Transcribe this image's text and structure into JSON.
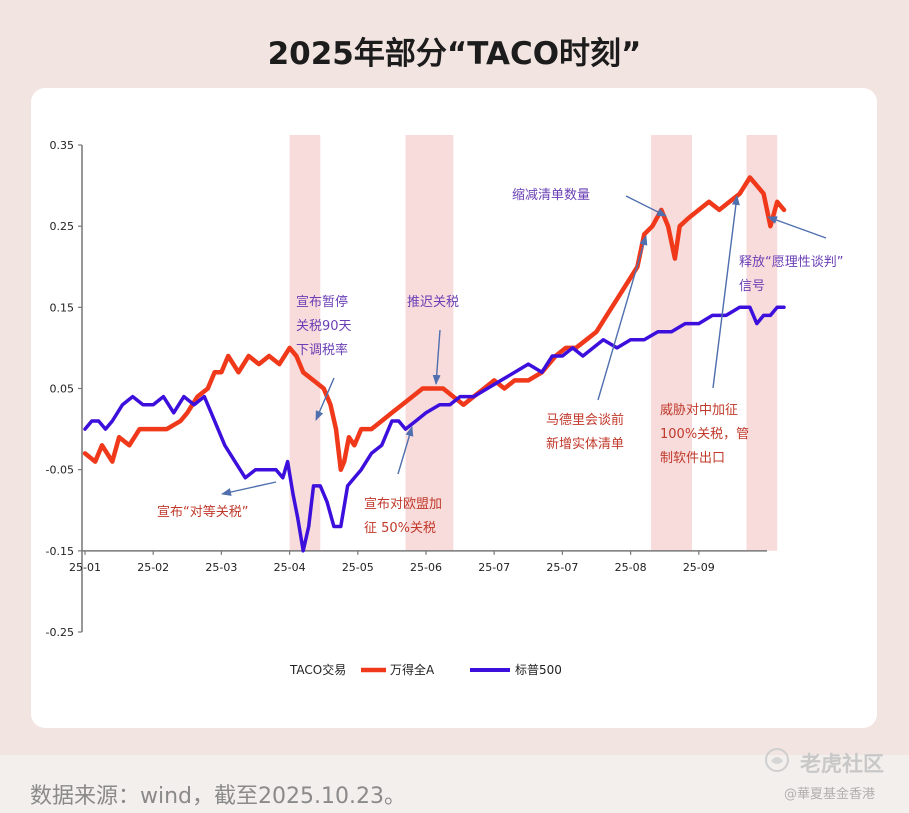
{
  "header": {
    "title": "2025年部分“TACO时刻”"
  },
  "footer": {
    "source": "数据来源：wind，截至2025.10.23。",
    "watermark_main": "老虎社区",
    "watermark_sub": "@華夏基金香港"
  },
  "colors": {
    "wind": "#f0391b",
    "sp500": "#3c0fdc",
    "band": "#f8dcdc",
    "annotation_purple": "#6a3fb5",
    "annotation_red": "#c0392b",
    "arrow": "#4f6fae"
  },
  "chart_data": {
    "type": "line",
    "title": "",
    "xlabel": "",
    "ylabel": "",
    "ylim": [
      -0.25,
      0.35
    ],
    "yticks": [
      "0.35",
      "0.25",
      "0.15",
      "0.05",
      "-0.05",
      "-0.15",
      "-0.25"
    ],
    "ytick_values": [
      0.35,
      0.25,
      0.15,
      0.05,
      -0.05,
      -0.15,
      -0.25
    ],
    "xticks": [
      "25-01",
      "25-02",
      "25-03",
      "25-04",
      "25-05",
      "25-06",
      "25-07",
      "25-07",
      "25-08",
      "25-09"
    ],
    "xtick_values": [
      0,
      1,
      2,
      3,
      4,
      5,
      6,
      7,
      8,
      9
    ],
    "xlim": [
      0,
      10
    ],
    "legend": {
      "placement": "bottom",
      "items": [
        "TACO交易",
        "万得全A",
        "标普500"
      ]
    },
    "taco_periods": [
      [
        3.0,
        3.45
      ],
      [
        4.7,
        5.4
      ],
      [
        8.3,
        8.9
      ],
      [
        9.7,
        10.15
      ]
    ],
    "series": [
      {
        "name": "万得全A",
        "key": "wind",
        "points": [
          [
            0.0,
            -0.03
          ],
          [
            0.15,
            -0.04
          ],
          [
            0.25,
            -0.02
          ],
          [
            0.4,
            -0.04
          ],
          [
            0.5,
            -0.01
          ],
          [
            0.65,
            -0.02
          ],
          [
            0.8,
            0.0
          ],
          [
            1.0,
            0.0
          ],
          [
            1.2,
            0.0
          ],
          [
            1.4,
            0.01
          ],
          [
            1.5,
            0.02
          ],
          [
            1.65,
            0.04
          ],
          [
            1.8,
            0.05
          ],
          [
            1.9,
            0.07
          ],
          [
            2.0,
            0.07
          ],
          [
            2.1,
            0.09
          ],
          [
            2.25,
            0.07
          ],
          [
            2.4,
            0.09
          ],
          [
            2.55,
            0.08
          ],
          [
            2.7,
            0.09
          ],
          [
            2.85,
            0.08
          ],
          [
            3.0,
            0.1
          ],
          [
            3.1,
            0.09
          ],
          [
            3.2,
            0.07
          ],
          [
            3.35,
            0.06
          ],
          [
            3.5,
            0.05
          ],
          [
            3.6,
            0.03
          ],
          [
            3.68,
            0.0
          ],
          [
            3.75,
            -0.05
          ],
          [
            3.8,
            -0.04
          ],
          [
            3.87,
            -0.01
          ],
          [
            3.95,
            -0.02
          ],
          [
            4.05,
            0.0
          ],
          [
            4.2,
            0.0
          ],
          [
            4.35,
            0.01
          ],
          [
            4.5,
            0.02
          ],
          [
            4.65,
            0.03
          ],
          [
            4.8,
            0.04
          ],
          [
            4.95,
            0.05
          ],
          [
            5.1,
            0.05
          ],
          [
            5.25,
            0.05
          ],
          [
            5.4,
            0.04
          ],
          [
            5.55,
            0.03
          ],
          [
            5.7,
            0.04
          ],
          [
            5.85,
            0.05
          ],
          [
            6.0,
            0.06
          ],
          [
            6.15,
            0.05
          ],
          [
            6.3,
            0.06
          ],
          [
            6.5,
            0.06
          ],
          [
            6.7,
            0.07
          ],
          [
            6.9,
            0.09
          ],
          [
            7.05,
            0.1
          ],
          [
            7.2,
            0.1
          ],
          [
            7.35,
            0.11
          ],
          [
            7.5,
            0.12
          ],
          [
            7.65,
            0.14
          ],
          [
            7.8,
            0.16
          ],
          [
            7.95,
            0.18
          ],
          [
            8.1,
            0.2
          ],
          [
            8.2,
            0.24
          ],
          [
            8.32,
            0.25
          ],
          [
            8.45,
            0.27
          ],
          [
            8.55,
            0.25
          ],
          [
            8.65,
            0.21
          ],
          [
            8.72,
            0.25
          ],
          [
            8.85,
            0.26
          ],
          [
            9.0,
            0.27
          ],
          [
            9.15,
            0.28
          ],
          [
            9.3,
            0.27
          ],
          [
            9.45,
            0.28
          ],
          [
            9.6,
            0.29
          ],
          [
            9.75,
            0.31
          ],
          [
            9.85,
            0.3
          ],
          [
            9.95,
            0.29
          ],
          [
            10.05,
            0.25
          ],
          [
            10.15,
            0.28
          ],
          [
            10.25,
            0.27
          ]
        ]
      },
      {
        "name": "标普500",
        "key": "sp500",
        "points": [
          [
            0.0,
            0.0
          ],
          [
            0.1,
            0.01
          ],
          [
            0.2,
            0.01
          ],
          [
            0.3,
            0.0
          ],
          [
            0.4,
            0.01
          ],
          [
            0.55,
            0.03
          ],
          [
            0.7,
            0.04
          ],
          [
            0.85,
            0.03
          ],
          [
            1.0,
            0.03
          ],
          [
            1.15,
            0.04
          ],
          [
            1.3,
            0.02
          ],
          [
            1.45,
            0.04
          ],
          [
            1.6,
            0.03
          ],
          [
            1.75,
            0.04
          ],
          [
            1.85,
            0.02
          ],
          [
            1.95,
            0.0
          ],
          [
            2.05,
            -0.02
          ],
          [
            2.2,
            -0.04
          ],
          [
            2.35,
            -0.06
          ],
          [
            2.5,
            -0.05
          ],
          [
            2.65,
            -0.05
          ],
          [
            2.8,
            -0.05
          ],
          [
            2.9,
            -0.06
          ],
          [
            2.97,
            -0.04
          ],
          [
            3.05,
            -0.08
          ],
          [
            3.12,
            -0.11
          ],
          [
            3.2,
            -0.15
          ],
          [
            3.28,
            -0.12
          ],
          [
            3.35,
            -0.07
          ],
          [
            3.45,
            -0.07
          ],
          [
            3.55,
            -0.09
          ],
          [
            3.65,
            -0.12
          ],
          [
            3.75,
            -0.12
          ],
          [
            3.85,
            -0.07
          ],
          [
            3.95,
            -0.06
          ],
          [
            4.05,
            -0.05
          ],
          [
            4.2,
            -0.03
          ],
          [
            4.35,
            -0.02
          ],
          [
            4.5,
            0.01
          ],
          [
            4.6,
            0.01
          ],
          [
            4.7,
            0.0
          ],
          [
            4.85,
            0.01
          ],
          [
            5.0,
            0.02
          ],
          [
            5.2,
            0.03
          ],
          [
            5.35,
            0.03
          ],
          [
            5.5,
            0.04
          ],
          [
            5.7,
            0.04
          ],
          [
            5.9,
            0.05
          ],
          [
            6.1,
            0.06
          ],
          [
            6.3,
            0.07
          ],
          [
            6.5,
            0.08
          ],
          [
            6.7,
            0.07
          ],
          [
            6.85,
            0.09
          ],
          [
            7.0,
            0.09
          ],
          [
            7.15,
            0.1
          ],
          [
            7.3,
            0.09
          ],
          [
            7.45,
            0.1
          ],
          [
            7.6,
            0.11
          ],
          [
            7.8,
            0.1
          ],
          [
            8.0,
            0.11
          ],
          [
            8.2,
            0.11
          ],
          [
            8.4,
            0.12
          ],
          [
            8.6,
            0.12
          ],
          [
            8.8,
            0.13
          ],
          [
            9.0,
            0.13
          ],
          [
            9.2,
            0.14
          ],
          [
            9.4,
            0.14
          ],
          [
            9.6,
            0.15
          ],
          [
            9.75,
            0.15
          ],
          [
            9.85,
            0.13
          ],
          [
            9.95,
            0.14
          ],
          [
            10.05,
            0.14
          ],
          [
            10.15,
            0.15
          ],
          [
            10.25,
            0.15
          ]
        ]
      }
    ],
    "annotations": [
      {
        "key": "a1",
        "lines": [
          "宣布“对等关税”"
        ],
        "color": "red"
      },
      {
        "key": "a2",
        "lines": [
          "宣布暂停",
          "关税90天",
          "下调税率"
        ],
        "color": "purple"
      },
      {
        "key": "a3",
        "lines": [
          "宣布对欧盟加",
          "征 50%关税"
        ],
        "color": "red"
      },
      {
        "key": "a4",
        "lines": [
          "推迟关税"
        ],
        "color": "purple"
      },
      {
        "key": "a5",
        "lines": [
          "马德里会谈前",
          "新增实体清单"
        ],
        "color": "red"
      },
      {
        "key": "a6",
        "lines": [
          "缩减清单数量"
        ],
        "color": "purple"
      },
      {
        "key": "a7",
        "lines": [
          "威胁对中加征",
          "100%关税，管",
          "制软件出口"
        ],
        "color": "red"
      },
      {
        "key": "a8",
        "lines": [
          "释放“愿理性谈判”",
          "信号"
        ],
        "color": "purple"
      }
    ]
  }
}
